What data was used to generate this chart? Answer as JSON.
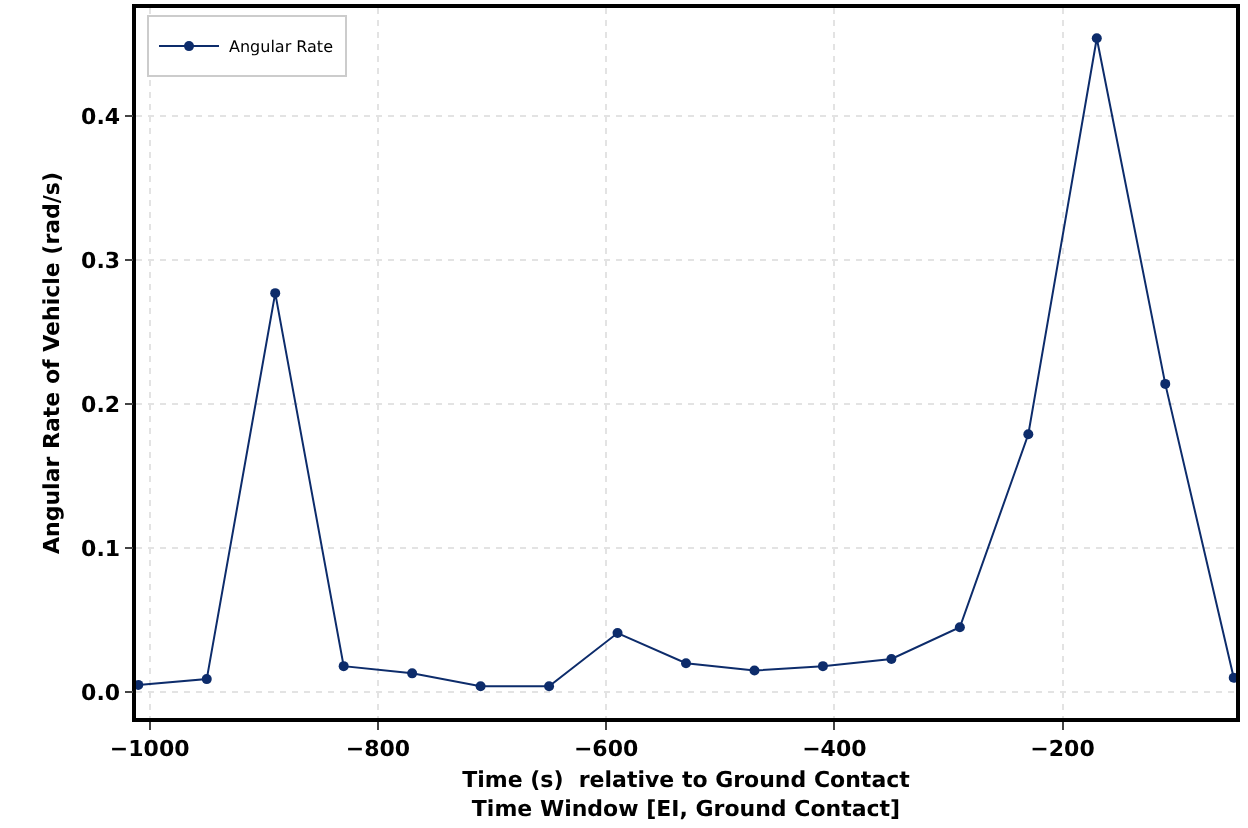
{
  "chart_data": {
    "type": "line",
    "xlabel": "Time (s)  relative to Ground Contact\nTime Window [EI, Ground Contact]",
    "ylabel": "Angular Rate of Vehicle (rad/s)",
    "x": [
      -1010,
      -950,
      -890,
      -830,
      -770,
      -710,
      -650,
      -590,
      -530,
      -470,
      -410,
      -350,
      -290,
      -230,
      -170,
      -110,
      -50
    ],
    "series": [
      {
        "name": "Angular Rate",
        "color": "#0d2c6b",
        "values": [
          0.005,
          0.009,
          0.277,
          0.018,
          0.013,
          0.004,
          0.004,
          0.041,
          0.02,
          0.015,
          0.018,
          0.023,
          0.045,
          0.179,
          0.454,
          0.214,
          0.01
        ]
      }
    ],
    "xlim": [
      -1012,
      -48
    ],
    "xticks": [
      -1000,
      -800,
      -600,
      -400,
      -200
    ],
    "ylim": [
      -0.018,
      0.475
    ],
    "yticks": [
      {
        "value": 0,
        "label": "0.0"
      },
      0.1,
      0.2,
      0.3,
      0.4
    ],
    "grid": true,
    "legend": "top left",
    "marker": "circle",
    "line_style": "solid"
  }
}
